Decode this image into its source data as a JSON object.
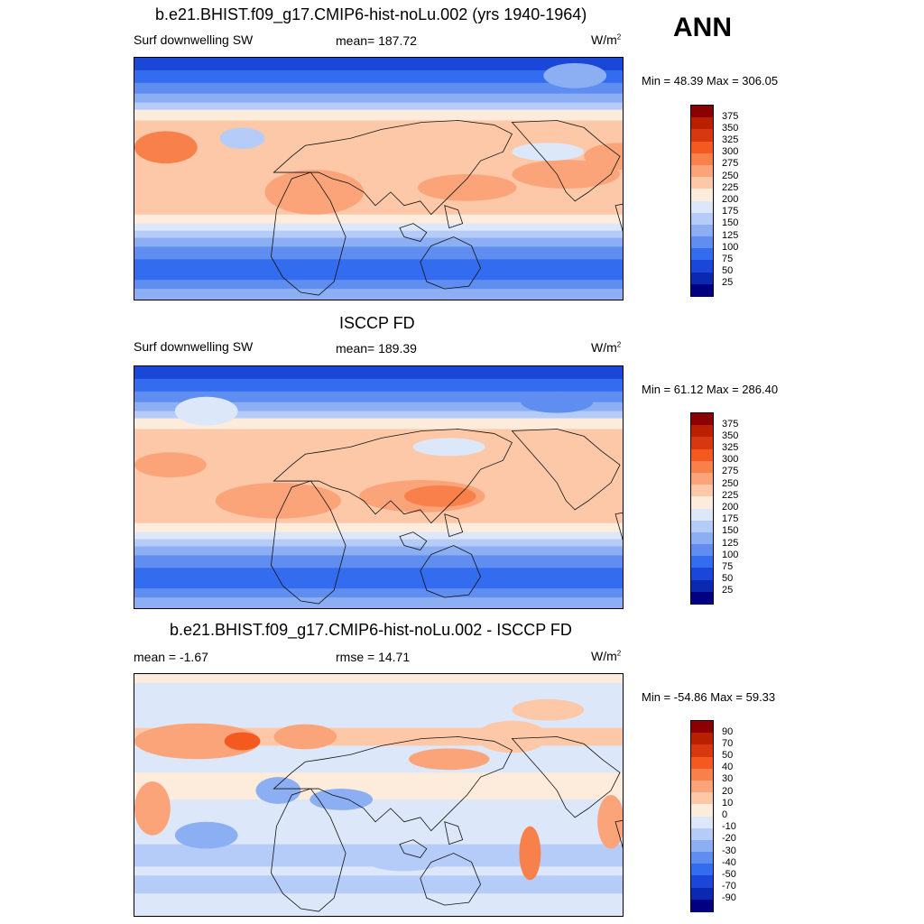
{
  "season": "ANN",
  "panels": [
    {
      "title": "b.e21.BHIST.f09_g17.CMIP6-hist-noLu.002 (yrs 1940-1964)",
      "left": "Surf downwelling SW",
      "center": "mean= 187.72",
      "units_base": "W/m",
      "units_exp": "2",
      "minmax": "Min =  48.39 Max = 306.05",
      "colorbar": {
        "labels": [
          "375",
          "350",
          "325",
          "300",
          "275",
          "250",
          "225",
          "200",
          "175",
          "150",
          "125",
          "100",
          "75",
          "50",
          "25"
        ],
        "colors": [
          "#8b0000",
          "#b82000",
          "#d83810",
          "#f45a20",
          "#f8804a",
          "#fba47a",
          "#fdc8a8",
          "#fdebdc",
          "#dce8fa",
          "#b6ccf8",
          "#8caff4",
          "#5f8ef0",
          "#346cf0",
          "#1b47d8",
          "#0a28b0",
          "#000080"
        ]
      },
      "map_type": "absolute"
    },
    {
      "title": "ISCCP FD",
      "left": "Surf downwelling SW",
      "center": "mean= 189.39",
      "units_base": "W/m",
      "units_exp": "2",
      "minmax": "Min =  61.12 Max = 286.40",
      "colorbar": {
        "labels": [
          "375",
          "350",
          "325",
          "300",
          "275",
          "250",
          "225",
          "200",
          "175",
          "150",
          "125",
          "100",
          "75",
          "50",
          "25"
        ],
        "colors": [
          "#8b0000",
          "#b82000",
          "#d83810",
          "#f45a20",
          "#f8804a",
          "#fba47a",
          "#fdc8a8",
          "#fdebdc",
          "#dce8fa",
          "#b6ccf8",
          "#8caff4",
          "#5f8ef0",
          "#346cf0",
          "#1b47d8",
          "#0a28b0",
          "#000080"
        ]
      },
      "map_type": "absolute"
    },
    {
      "title": "b.e21.BHIST.f09_g17.CMIP6-hist-noLu.002 - ISCCP FD",
      "left": "mean =  -1.67",
      "center": "rmse =  14.71",
      "units_base": "W/m",
      "units_exp": "2",
      "minmax": "Min = -54.86 Max =  59.33",
      "colorbar": {
        "labels": [
          "90",
          "70",
          "50",
          "40",
          "30",
          "20",
          "10",
          "0",
          "-10",
          "-20",
          "-30",
          "-40",
          "-50",
          "-70",
          "-90"
        ],
        "colors": [
          "#8b0000",
          "#b82000",
          "#d83810",
          "#f45a20",
          "#f8804a",
          "#fba47a",
          "#fdc8a8",
          "#fdebdc",
          "#dce8fa",
          "#b6ccf8",
          "#8caff4",
          "#5f8ef0",
          "#346cf0",
          "#1b47d8",
          "#0a28b0",
          "#000080"
        ]
      },
      "map_type": "difference"
    }
  ]
}
